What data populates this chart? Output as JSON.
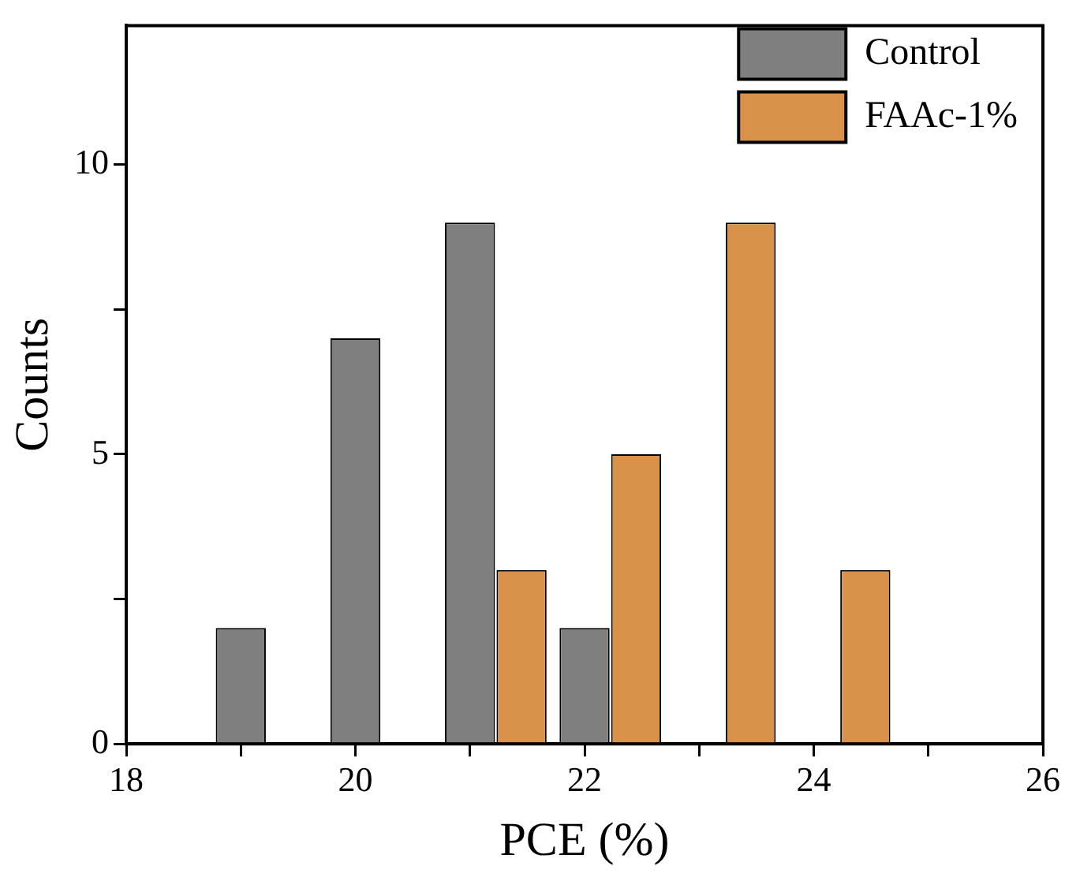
{
  "chart_data": {
    "type": "bar",
    "xlabel": "PCE (%)",
    "ylabel": "Counts",
    "series": [
      {
        "name": "Control",
        "color": "#7f7f7f",
        "x": [
          19,
          20,
          21,
          22
        ],
        "values": [
          2,
          7,
          9,
          2
        ]
      },
      {
        "name": "FAAc-1%",
        "color": "#d9924a",
        "x": [
          21.45,
          22.45,
          23.45,
          24.45
        ],
        "values": [
          3,
          5,
          9,
          3
        ]
      }
    ],
    "xlim": [
      18,
      26
    ],
    "xticks": [
      18,
      {
        "value": 19,
        "label": null
      },
      20,
      {
        "value": 21,
        "label": null
      },
      22,
      {
        "value": 23,
        "label": null
      },
      24,
      {
        "value": 25,
        "label": null
      },
      26
    ],
    "ylim": [
      0,
      12.4
    ],
    "yticks": [
      0,
      {
        "value": 2.5,
        "label": null
      },
      5,
      {
        "value": 7.5,
        "label": null
      },
      10
    ],
    "grid": false,
    "legend": "top right"
  }
}
